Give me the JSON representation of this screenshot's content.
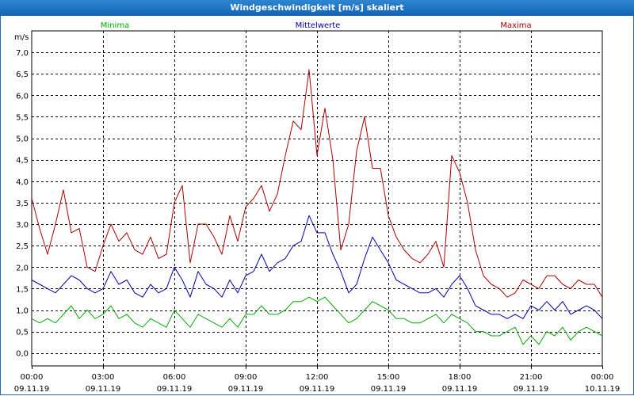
{
  "chart_data": {
    "type": "line",
    "title": "Windgeschwindigkeit [m/s] skaliert",
    "ylabel": "m/s",
    "ylim": [
      -0.3,
      7.5
    ],
    "xlim": [
      0,
      24
    ],
    "grid": true,
    "y_ticks": [
      "0,0",
      "0,5",
      "1,0",
      "1,5",
      "2,0",
      "2,5",
      "3,0",
      "3,5",
      "4,0",
      "4,5",
      "5,0",
      "5,5",
      "6,0",
      "6,5",
      "7,0"
    ],
    "x_ticks": [
      {
        "time": "00:00",
        "date": "09.11.19"
      },
      {
        "time": "03:00",
        "date": "09.11.19"
      },
      {
        "time": "06:00",
        "date": "09.11.19"
      },
      {
        "time": "09:00",
        "date": "09.11.19"
      },
      {
        "time": "12:00",
        "date": "09.11.19"
      },
      {
        "time": "15:00",
        "date": "09.11.19"
      },
      {
        "time": "18:00",
        "date": "09.11.19"
      },
      {
        "time": "21:00",
        "date": "09.11.19"
      },
      {
        "time": "00:00",
        "date": "10.11.19"
      }
    ],
    "x_hours": [
      0,
      0.3333,
      0.6667,
      1,
      1.3333,
      1.6667,
      2,
      2.3333,
      2.6667,
      3,
      3.3333,
      3.6667,
      4,
      4.3333,
      4.6667,
      5,
      5.3333,
      5.6667,
      6,
      6.3333,
      6.6667,
      7,
      7.3333,
      7.6667,
      8,
      8.3333,
      8.6667,
      9,
      9.3333,
      9.6667,
      10,
      10.3333,
      10.6667,
      11,
      11.3333,
      11.6667,
      12,
      12.3333,
      12.6667,
      13,
      13.3333,
      13.6667,
      14,
      14.3333,
      14.6667,
      15,
      15.3333,
      15.6667,
      16,
      16.3333,
      16.6667,
      17,
      17.3333,
      17.6667,
      18,
      18.3333,
      18.6667,
      19,
      19.3333,
      19.6667,
      20,
      20.3333,
      20.6667,
      21,
      21.3333,
      21.6667,
      22,
      22.3333,
      22.6667,
      23,
      23.3333,
      23.6667,
      24
    ],
    "series": [
      {
        "name": "Minima",
        "color": "#00aa00",
        "values": [
          0.8,
          0.7,
          0.8,
          0.7,
          0.9,
          1.1,
          0.8,
          1.0,
          0.8,
          0.9,
          1.1,
          0.8,
          0.9,
          0.7,
          0.6,
          0.8,
          0.7,
          0.6,
          1.0,
          0.8,
          0.6,
          0.9,
          0.8,
          0.7,
          0.6,
          0.8,
          0.6,
          0.9,
          0.9,
          1.1,
          0.9,
          0.9,
          1.0,
          1.2,
          1.2,
          1.3,
          1.2,
          1.3,
          1.1,
          0.9,
          0.7,
          0.8,
          1.0,
          1.2,
          1.1,
          1.0,
          0.8,
          0.8,
          0.7,
          0.7,
          0.8,
          0.9,
          0.7,
          0.9,
          0.8,
          0.7,
          0.5,
          0.5,
          0.4,
          0.4,
          0.5,
          0.6,
          0.2,
          0.4,
          0.2,
          0.5,
          0.4,
          0.6,
          0.3,
          0.5,
          0.6,
          0.5,
          0.4
        ]
      },
      {
        "name": "Mittelwerte",
        "color": "#0000aa",
        "values": [
          1.7,
          1.6,
          1.5,
          1.4,
          1.6,
          1.8,
          1.7,
          1.5,
          1.4,
          1.5,
          1.9,
          1.6,
          1.7,
          1.4,
          1.3,
          1.6,
          1.4,
          1.5,
          2.0,
          1.7,
          1.3,
          1.9,
          1.6,
          1.5,
          1.3,
          1.7,
          1.4,
          1.8,
          1.9,
          2.3,
          1.9,
          2.1,
          2.2,
          2.5,
          2.6,
          3.2,
          2.8,
          2.8,
          2.3,
          1.9,
          1.4,
          1.6,
          2.2,
          2.7,
          2.4,
          2.1,
          1.7,
          1.6,
          1.5,
          1.4,
          1.4,
          1.5,
          1.3,
          1.6,
          1.8,
          1.5,
          1.1,
          1.0,
          0.9,
          0.9,
          0.8,
          0.9,
          0.8,
          1.1,
          1.0,
          1.2,
          1.0,
          1.2,
          0.9,
          1.0,
          1.1,
          1.0,
          0.8
        ]
      },
      {
        "name": "Maxima",
        "color": "#aa0000",
        "values": [
          3.6,
          2.9,
          2.3,
          3.0,
          3.8,
          2.8,
          2.9,
          2.0,
          1.9,
          2.5,
          3.0,
          2.6,
          2.8,
          2.4,
          2.3,
          2.7,
          2.2,
          2.3,
          3.5,
          3.9,
          2.1,
          3.0,
          3.0,
          2.7,
          2.3,
          3.2,
          2.6,
          3.4,
          3.6,
          3.9,
          3.3,
          3.7,
          4.6,
          5.4,
          5.2,
          6.6,
          4.6,
          5.7,
          4.5,
          2.4,
          3.0,
          4.7,
          5.5,
          4.3,
          4.3,
          3.2,
          2.7,
          2.4,
          2.2,
          2.1,
          2.3,
          2.6,
          2.0,
          4.6,
          4.2,
          3.5,
          2.4,
          1.8,
          1.6,
          1.5,
          1.3,
          1.4,
          1.7,
          1.6,
          1.5,
          1.8,
          1.8,
          1.6,
          1.5,
          1.7,
          1.6,
          1.6,
          1.3
        ]
      }
    ]
  }
}
